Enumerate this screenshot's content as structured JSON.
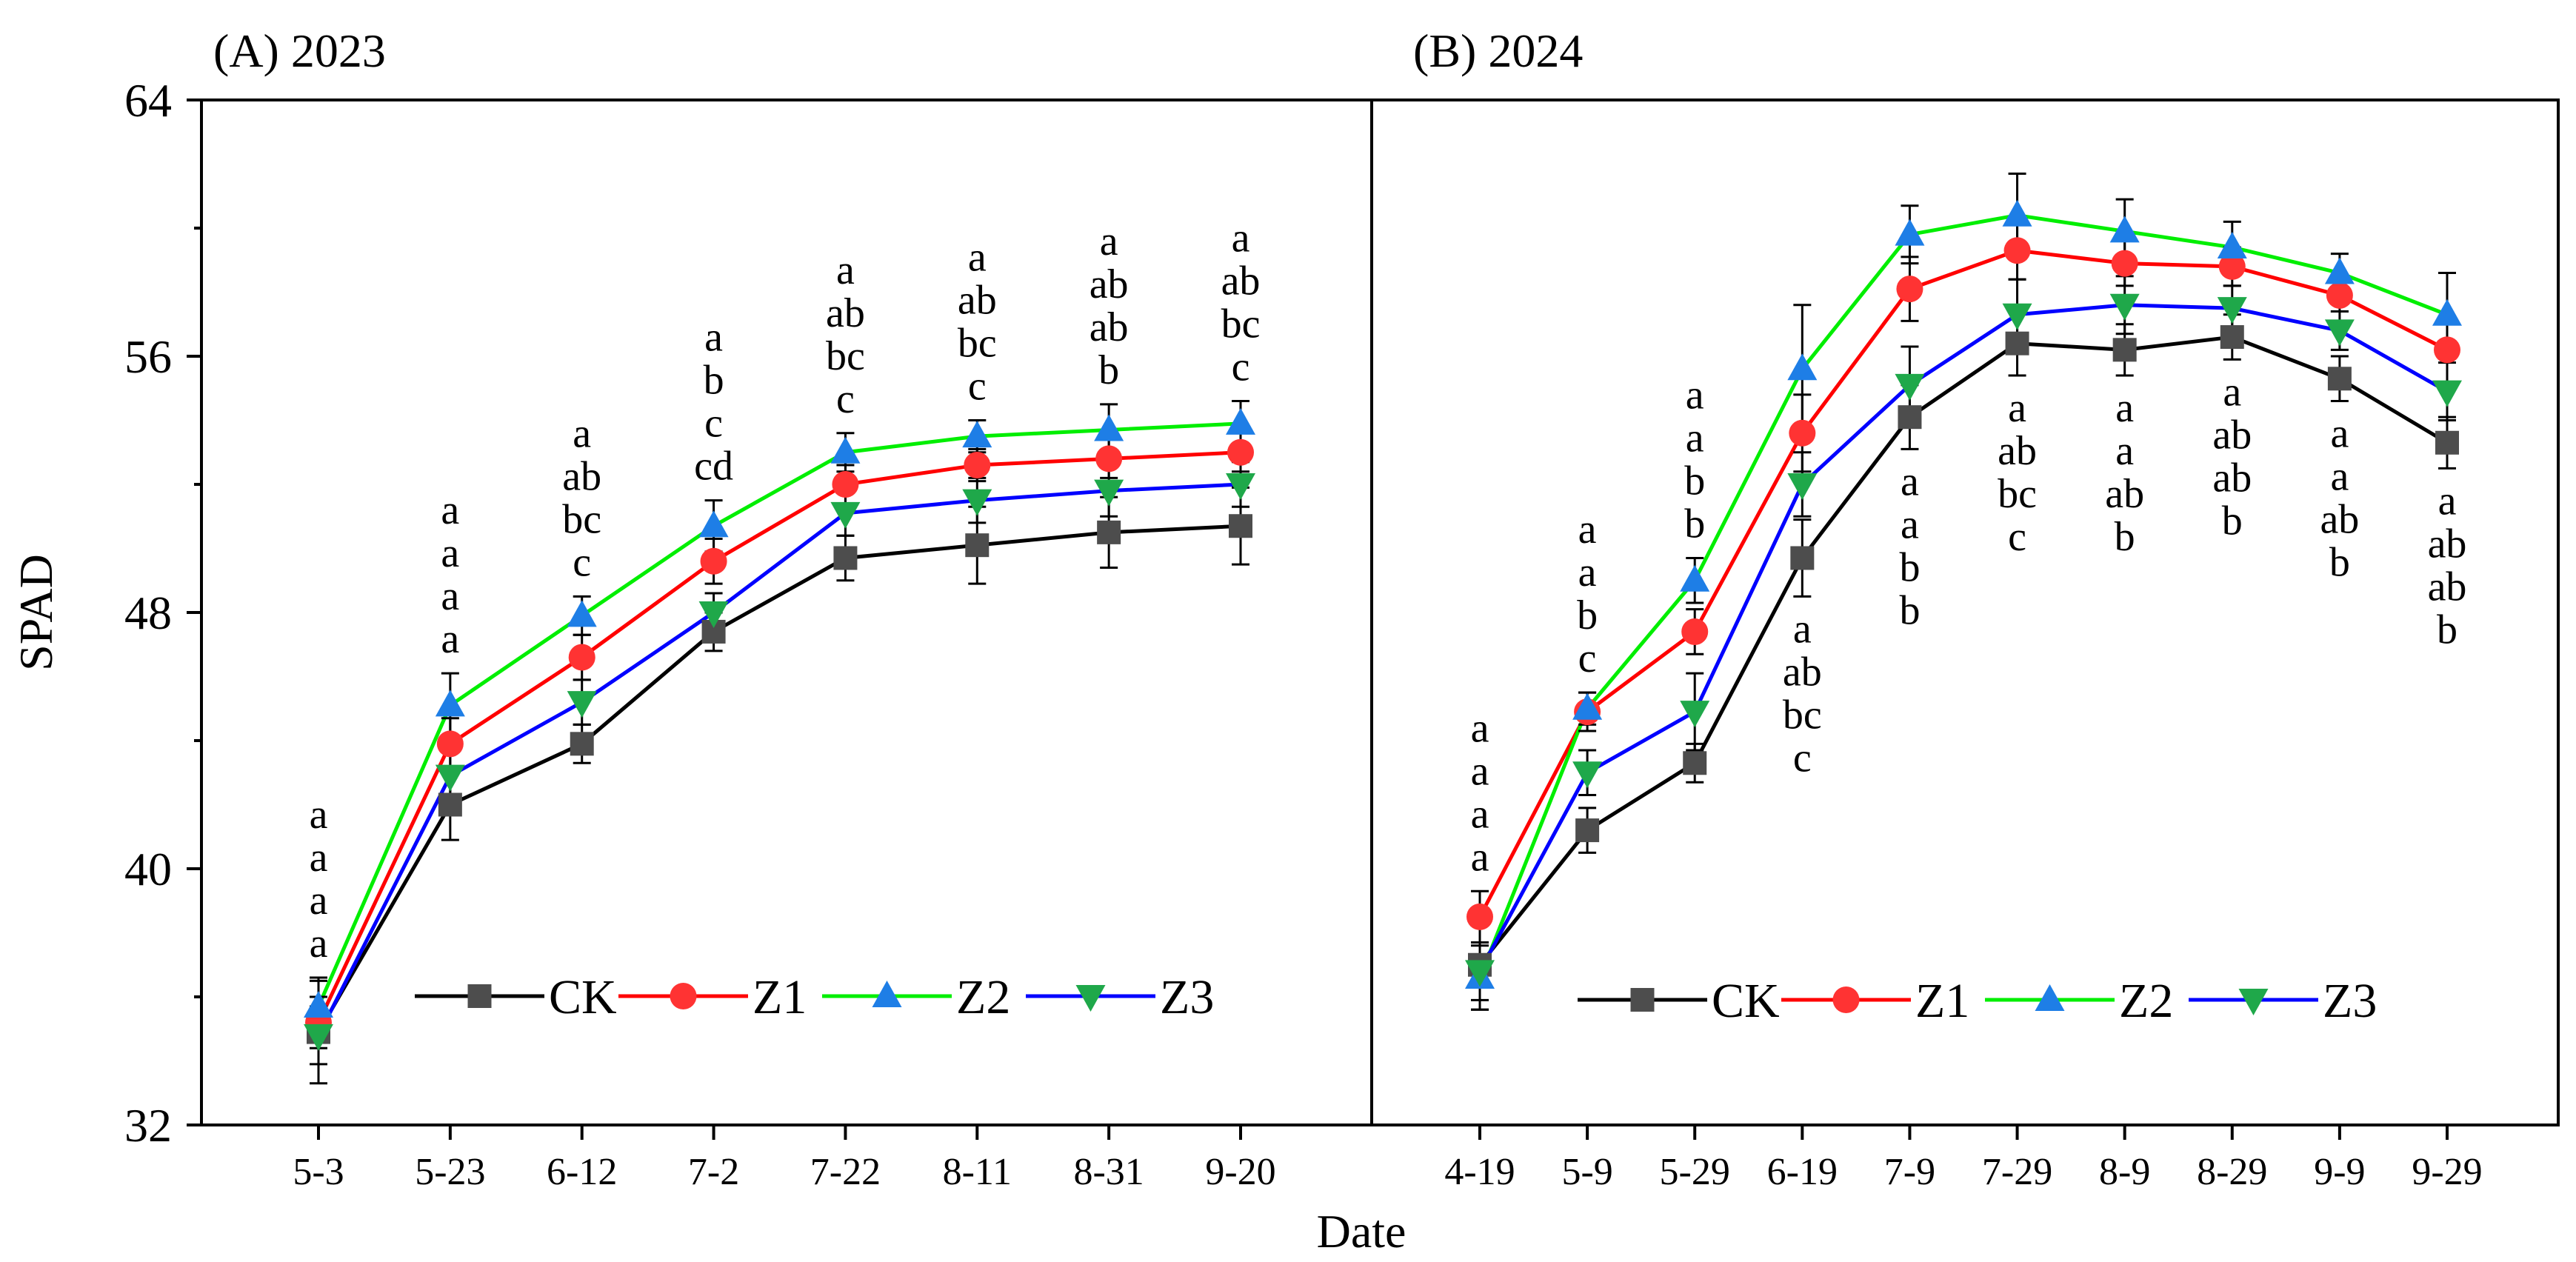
{
  "chart_data": {
    "type": "line",
    "ylabel": "SPAD",
    "xlabel": "Date",
    "ylim": [
      32,
      64
    ],
    "yticks": [
      32,
      40,
      48,
      56,
      64
    ],
    "series_colors": {
      "CK": "#000000",
      "Z1": "#ff0000",
      "Z2": "#00ee00",
      "Z3": "#0000ff"
    },
    "marker_colors": {
      "CK": "#4d4d4d",
      "Z1": "#ff3333",
      "Z2": "#1e7ee6",
      "Z3": "#1fa84a"
    },
    "markers": {
      "CK": "square",
      "Z1": "circle",
      "Z2": "triangle-up",
      "Z3": "triangle-down"
    },
    "legend": [
      "CK",
      "Z1",
      "Z2",
      "Z3"
    ],
    "panels": [
      {
        "title": "(A) 2023",
        "categories": [
          "5-3",
          "5-23",
          "6-12",
          "7-2",
          "7-22",
          "8-11",
          "8-31",
          "9-20"
        ],
        "series": [
          {
            "name": "CK",
            "values": [
              34.9,
              42.0,
              43.9,
              47.4,
              49.7,
              50.1,
              50.5,
              50.7
            ],
            "errors": [
              1.6,
              1.1,
              0.6,
              0.6,
              0.7,
              1.2,
              1.1,
              1.2
            ]
          },
          {
            "name": "Z1",
            "values": [
              35.2,
              43.9,
              46.6,
              49.6,
              52.0,
              52.6,
              52.8,
              53.0
            ],
            "errors": [
              0.8,
              0.8,
              0.7,
              0.7,
              0.6,
              0.5,
              0.6,
              0.6
            ]
          },
          {
            "name": "Z2",
            "values": [
              35.7,
              45.1,
              47.9,
              50.7,
              53.0,
              53.5,
              53.7,
              53.9
            ],
            "errors": [
              0.9,
              1.0,
              0.6,
              0.8,
              0.6,
              0.5,
              0.8,
              0.7
            ]
          },
          {
            "name": "Z3",
            "values": [
              34.8,
              42.9,
              45.2,
              48.0,
              51.1,
              51.5,
              51.8,
              52.0
            ],
            "errors": [
              0.9,
              0.8,
              0.7,
              0.6,
              0.7,
              0.7,
              0.8,
              0.7
            ]
          }
        ],
        "letters": [
          [
            "a",
            "a",
            "a",
            "a"
          ],
          [
            "a",
            "a",
            "a",
            "a"
          ],
          [
            "a",
            "ab",
            "bc",
            "c"
          ],
          [
            "a",
            "b",
            "c",
            "cd"
          ],
          [
            "a",
            "ab",
            "bc",
            "c"
          ],
          [
            "a",
            "ab",
            "bc",
            "c"
          ],
          [
            "a",
            "ab",
            "ab",
            "b"
          ],
          [
            "a",
            "ab",
            "bc",
            "c"
          ]
        ],
        "letters_position": "above"
      },
      {
        "title": "(B) 2024",
        "categories": [
          "4-19",
          "5-9",
          "5-29",
          "6-19",
          "7-9",
          "7-29",
          "8-9",
          "8-29",
          "9-9",
          "9-29"
        ],
        "series": [
          {
            "name": "CK",
            "values": [
              37.0,
              41.2,
              43.3,
              49.7,
              54.1,
              56.4,
              56.2,
              56.6,
              55.3,
              53.3
            ],
            "errors": [
              1.4,
              0.7,
              0.6,
              1.2,
              1.0,
              1.0,
              0.8,
              0.7,
              0.7,
              0.8
            ]
          },
          {
            "name": "Z1",
            "values": [
              38.5,
              44.9,
              47.4,
              53.6,
              58.1,
              59.3,
              58.9,
              58.8,
              57.9,
              56.2
            ],
            "errors": [
              0.8,
              0.6,
              0.7,
              1.2,
              1.0,
              0.9,
              0.7,
              0.6,
              0.5,
              1.0
            ]
          },
          {
            "name": "Z2",
            "values": [
              36.6,
              45.0,
              49.0,
              55.6,
              59.8,
              60.4,
              59.9,
              59.4,
              58.6,
              57.3
            ],
            "errors": [
              1.0,
              0.5,
              0.7,
              2.0,
              0.9,
              1.3,
              1.0,
              0.8,
              0.6,
              1.3
            ]
          },
          {
            "name": "Z3",
            "values": [
              36.8,
              43.0,
              44.9,
              52.0,
              55.1,
              57.3,
              57.6,
              57.5,
              56.8,
              54.9
            ],
            "errors": [
              0.9,
              0.7,
              1.2,
              1.0,
              1.2,
              1.1,
              0.9,
              0.7,
              0.6,
              0.9
            ]
          }
        ],
        "letters": [
          [
            "a",
            "a",
            "a",
            "a"
          ],
          [
            "a",
            "a",
            "b",
            "c"
          ],
          [
            "a",
            "a",
            "b",
            "b"
          ],
          [
            "a",
            "ab",
            "bc",
            "c"
          ],
          [
            "a",
            "a",
            "b",
            "b"
          ],
          [
            "a",
            "ab",
            "bc",
            "c"
          ],
          [
            "a",
            "a",
            "ab",
            "b"
          ],
          [
            "a",
            "ab",
            "ab",
            "b"
          ],
          [
            "a",
            "a",
            "ab",
            "b"
          ],
          [
            "a",
            "ab",
            "ab",
            "b"
          ]
        ],
        "letters_position": [
          "above",
          "above",
          "above",
          "below",
          "below",
          "below",
          "below",
          "below",
          "below",
          "below"
        ]
      }
    ]
  }
}
